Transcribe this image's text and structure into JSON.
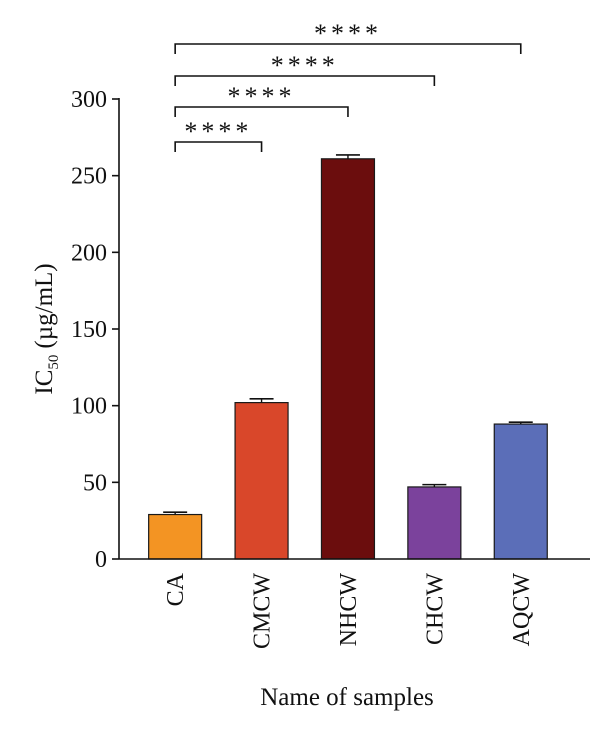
{
  "chart_data": {
    "type": "bar",
    "title": "",
    "xlabel": "Name of samples",
    "ylabel": {
      "main": "IC",
      "subscript": "50",
      "unit": "(µg/mL)"
    },
    "ylim": [
      0,
      300
    ],
    "yticks": [
      0,
      50,
      100,
      150,
      200,
      250,
      300
    ],
    "grid": false,
    "legend": "none",
    "categories": [
      "CA",
      "CMCW",
      "NHCW",
      "CHCW",
      "AQCW"
    ],
    "values": [
      29,
      102,
      261,
      47,
      88
    ],
    "errors": [
      1.5,
      2.5,
      2.5,
      1.5,
      1.2
    ],
    "colors": [
      "#F39423",
      "#D9472A",
      "#6B0D0D",
      "#7B429C",
      "#5B6EB8"
    ],
    "significance": [
      {
        "from": "CA",
        "to": "CMCW",
        "label": "****"
      },
      {
        "from": "CA",
        "to": "NHCW",
        "label": "****"
      },
      {
        "from": "CA",
        "to": "CHCW",
        "label": "****"
      },
      {
        "from": "CA",
        "to": "AQCW",
        "label": "****"
      }
    ]
  }
}
